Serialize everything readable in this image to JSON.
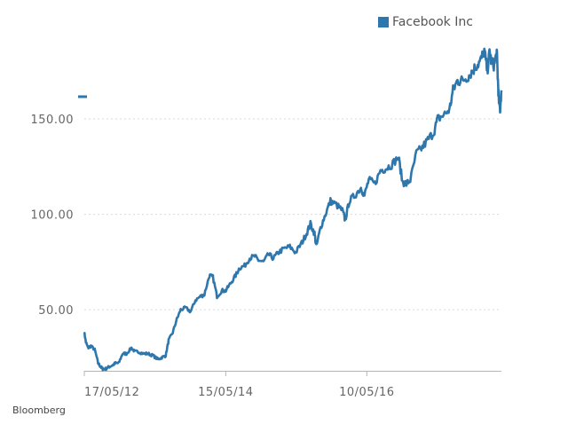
{
  "chart_data": {
    "type": "line",
    "title": "",
    "xlabel": "",
    "ylabel": "",
    "x_ticks": [
      "17/05/12",
      "15/05/14",
      "10/05/16"
    ],
    "y_ticks": [
      150,
      100,
      50
    ],
    "y_tick_labels": [
      "150.00",
      "100.00",
      "50.00"
    ],
    "ylim": [
      18,
      190
    ],
    "xlim": [
      "2012-05-17",
      "2018-04-03"
    ],
    "grid": true,
    "legend_position": "top-right",
    "series": [
      {
        "name": "Facebook Inc",
        "color": "#2e77ad",
        "x": [
          "2012-05-17",
          "2012-05-25",
          "2012-06-05",
          "2012-06-20",
          "2012-07-10",
          "2012-07-27",
          "2012-08-10",
          "2012-08-20",
          "2012-09-04",
          "2012-09-20",
          "2012-10-10",
          "2012-10-25",
          "2012-11-10",
          "2012-11-30",
          "2012-12-20",
          "2013-01-15",
          "2013-02-01",
          "2013-02-20",
          "2013-03-15",
          "2013-04-10",
          "2013-05-05",
          "2013-06-01",
          "2013-06-20",
          "2013-07-10",
          "2013-07-25",
          "2013-08-15",
          "2013-09-05",
          "2013-09-25",
          "2013-10-20",
          "2013-11-15",
          "2013-12-10",
          "2014-01-05",
          "2014-01-25",
          "2014-02-20",
          "2014-03-10",
          "2014-03-31",
          "2014-04-25",
          "2014-05-15",
          "2014-06-10",
          "2014-07-05",
          "2014-07-25",
          "2014-08-20",
          "2014-09-15",
          "2014-10-10",
          "2014-10-30",
          "2014-11-25",
          "2014-12-20",
          "2015-01-15",
          "2015-02-10",
          "2015-03-10",
          "2015-04-10",
          "2015-05-10",
          "2015-06-10",
          "2015-07-05",
          "2015-07-25",
          "2015-08-15",
          "2015-08-24",
          "2015-09-15",
          "2015-10-10",
          "2015-11-05",
          "2015-12-05",
          "2016-01-05",
          "2016-01-20",
          "2016-02-10",
          "2016-03-10",
          "2016-04-10",
          "2016-04-28",
          "2016-05-20",
          "2016-06-20",
          "2016-07-20",
          "2016-08-15",
          "2016-09-15",
          "2016-10-20",
          "2016-11-10",
          "2016-11-30",
          "2016-12-20",
          "2017-01-20",
          "2017-02-20",
          "2017-03-20",
          "2017-04-20",
          "2017-05-10",
          "2017-06-10",
          "2017-07-10",
          "2017-07-28",
          "2017-08-20",
          "2017-09-10",
          "2017-10-10",
          "2017-11-05",
          "2017-11-25",
          "2017-12-15",
          "2018-01-05",
          "2018-01-20",
          "2018-02-01",
          "2018-02-10",
          "2018-02-25",
          "2018-03-10",
          "2018-03-16",
          "2018-03-20",
          "2018-03-27",
          "2018-04-03"
        ],
        "values": [
          38,
          33,
          30,
          31,
          29,
          22,
          20,
          19,
          19,
          20,
          21,
          22,
          22,
          27,
          27,
          30,
          28,
          28,
          27,
          27,
          26,
          24,
          25,
          26,
          34,
          38,
          45,
          50,
          51,
          49,
          55,
          57,
          58,
          68,
          67,
          57,
          60,
          60,
          64,
          68,
          72,
          73,
          77,
          78,
          76,
          75,
          79,
          77,
          80,
          82,
          83,
          80,
          85,
          90,
          95,
          90,
          83,
          93,
          100,
          107,
          105,
          102,
          97,
          107,
          110,
          114,
          110,
          118,
          116,
          123,
          124,
          126,
          130,
          117,
          116,
          118,
          132,
          135,
          139,
          143,
          150,
          152,
          155,
          165,
          170,
          170,
          172,
          175,
          178,
          180,
          186,
          175,
          185,
          180,
          178,
          185,
          170,
          160,
          155,
          165
        ]
      }
    ]
  },
  "legend": {
    "label": "Facebook Inc"
  },
  "source": {
    "label": "Bloomberg"
  }
}
